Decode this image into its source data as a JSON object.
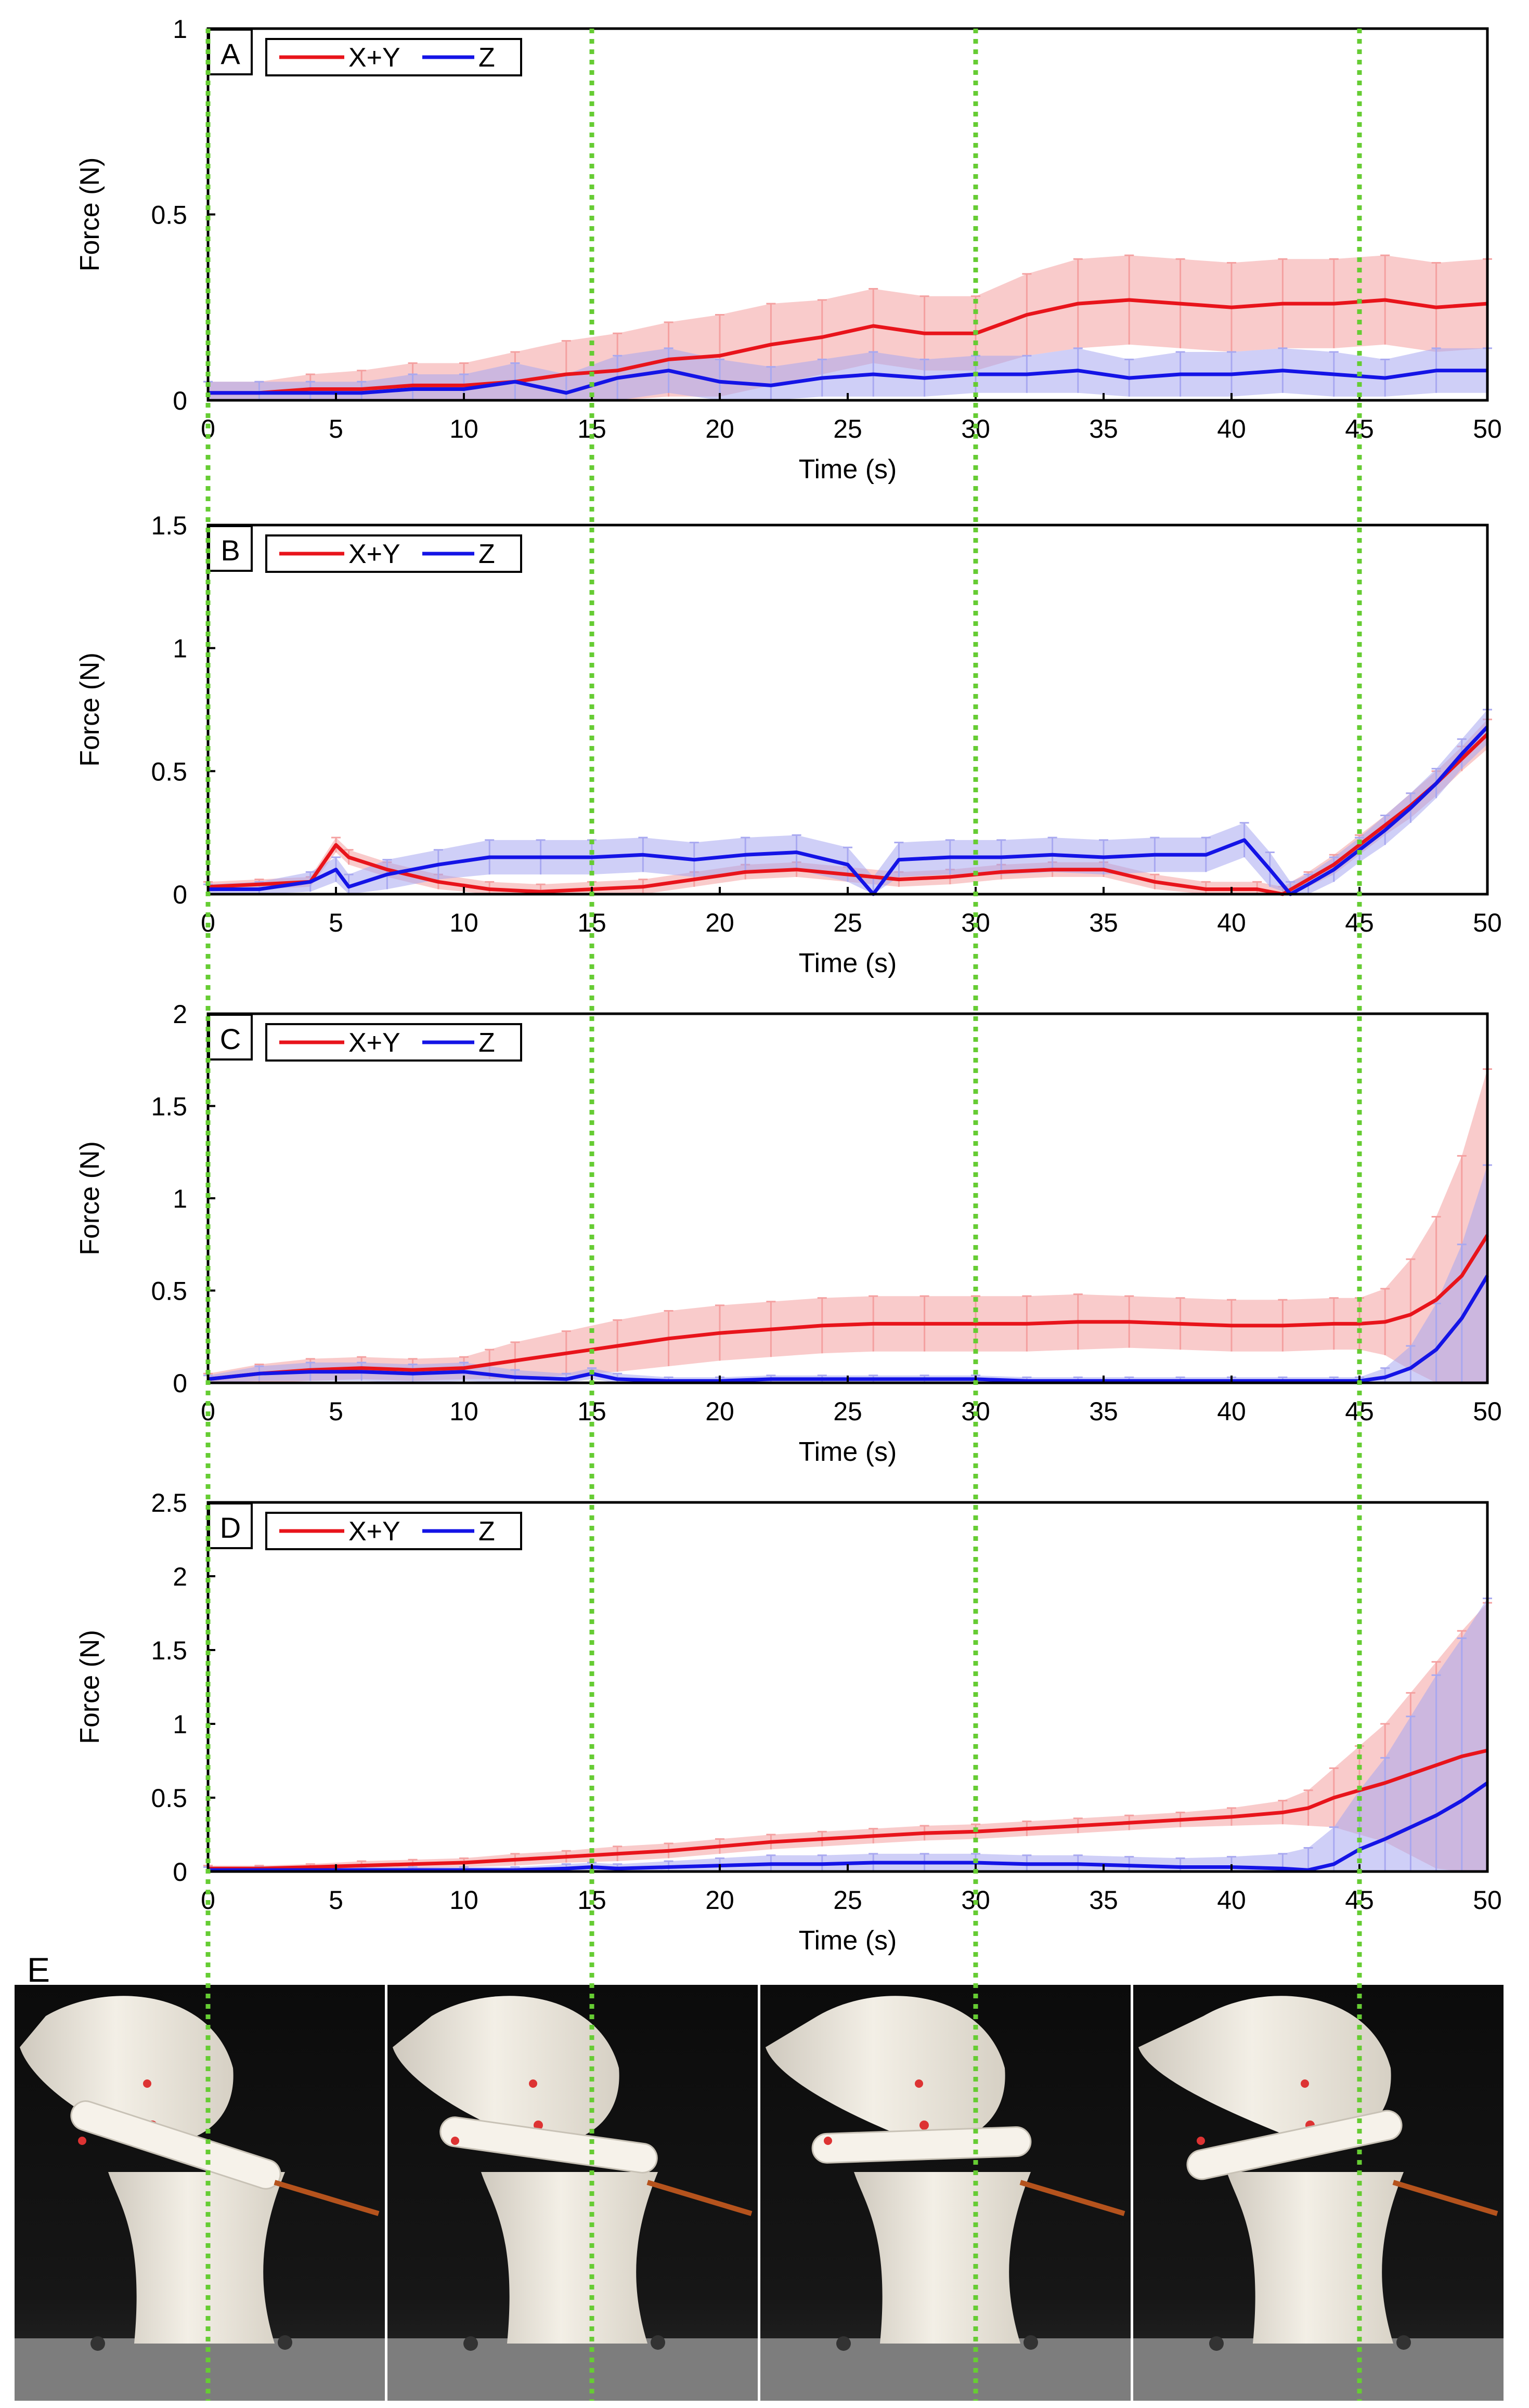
{
  "chart_data": [
    {
      "type": "line",
      "panel": "A",
      "title": "",
      "xlabel": "Time (s)",
      "ylabel": "Force (N)",
      "xlim": [
        0,
        50
      ],
      "ylim": [
        0,
        1
      ],
      "xticks": [
        0,
        5,
        10,
        15,
        20,
        25,
        30,
        35,
        40,
        45,
        50
      ],
      "yticks": [
        0,
        0.5,
        1
      ],
      "legend_position": "top-left",
      "series": [
        {
          "name": "X+Y",
          "color": "#e8141b",
          "band_color": "#f4a0a0",
          "x": [
            0,
            2,
            4,
            6,
            8,
            10,
            12,
            14,
            16,
            18,
            20,
            22,
            24,
            26,
            28,
            30,
            32,
            34,
            36,
            38,
            40,
            42,
            44,
            46,
            48,
            50
          ],
          "values": [
            0.02,
            0.02,
            0.03,
            0.03,
            0.04,
            0.04,
            0.05,
            0.07,
            0.08,
            0.11,
            0.12,
            0.15,
            0.17,
            0.2,
            0.18,
            0.18,
            0.23,
            0.26,
            0.27,
            0.26,
            0.25,
            0.26,
            0.26,
            0.27,
            0.25,
            0.26
          ],
          "errors": [
            0.03,
            0.03,
            0.04,
            0.05,
            0.06,
            0.06,
            0.08,
            0.09,
            0.1,
            0.1,
            0.11,
            0.11,
            0.1,
            0.1,
            0.1,
            0.1,
            0.11,
            0.12,
            0.12,
            0.12,
            0.12,
            0.12,
            0.12,
            0.12,
            0.12,
            0.12
          ]
        },
        {
          "name": "Z",
          "color": "#1414e6",
          "band_color": "#a8a8f0",
          "x": [
            0,
            2,
            4,
            6,
            8,
            10,
            12,
            14,
            16,
            18,
            20,
            22,
            24,
            26,
            28,
            30,
            32,
            34,
            36,
            38,
            40,
            42,
            44,
            46,
            48,
            50
          ],
          "values": [
            0.02,
            0.02,
            0.02,
            0.02,
            0.03,
            0.03,
            0.05,
            0.02,
            0.06,
            0.08,
            0.05,
            0.04,
            0.06,
            0.07,
            0.06,
            0.07,
            0.07,
            0.08,
            0.06,
            0.07,
            0.07,
            0.08,
            0.07,
            0.06,
            0.08,
            0.08
          ],
          "errors": [
            0.03,
            0.03,
            0.03,
            0.03,
            0.04,
            0.04,
            0.05,
            0.05,
            0.06,
            0.06,
            0.06,
            0.05,
            0.05,
            0.06,
            0.05,
            0.05,
            0.05,
            0.06,
            0.05,
            0.06,
            0.06,
            0.06,
            0.06,
            0.05,
            0.06,
            0.06
          ]
        }
      ]
    },
    {
      "type": "line",
      "panel": "B",
      "title": "",
      "xlabel": "Time (s)",
      "ylabel": "Force (N)",
      "xlim": [
        0,
        50
      ],
      "ylim": [
        0,
        1.5
      ],
      "xticks": [
        0,
        5,
        10,
        15,
        20,
        25,
        30,
        35,
        40,
        45,
        50
      ],
      "yticks": [
        0,
        0.5,
        1,
        1.5
      ],
      "legend_position": "top-left",
      "series": [
        {
          "name": "X+Y",
          "color": "#e8141b",
          "band_color": "#f4a0a0",
          "x": [
            0,
            2,
            4,
            5,
            5.5,
            7,
            9,
            11,
            13,
            15,
            17,
            19,
            21,
            23,
            25,
            27,
            29,
            31,
            33,
            35,
            37,
            39,
            41,
            42,
            43,
            44,
            45,
            46,
            47,
            48,
            49,
            50
          ],
          "values": [
            0.03,
            0.04,
            0.05,
            0.2,
            0.15,
            0.1,
            0.05,
            0.02,
            0.01,
            0.02,
            0.03,
            0.06,
            0.09,
            0.1,
            0.08,
            0.06,
            0.07,
            0.09,
            0.1,
            0.1,
            0.05,
            0.02,
            0.02,
            0.0,
            0.06,
            0.12,
            0.2,
            0.28,
            0.36,
            0.45,
            0.55,
            0.65
          ],
          "errors": [
            0.02,
            0.02,
            0.02,
            0.03,
            0.03,
            0.03,
            0.03,
            0.03,
            0.03,
            0.03,
            0.03,
            0.03,
            0.03,
            0.03,
            0.03,
            0.03,
            0.03,
            0.03,
            0.03,
            0.03,
            0.03,
            0.03,
            0.03,
            0.03,
            0.03,
            0.04,
            0.04,
            0.04,
            0.05,
            0.05,
            0.05,
            0.06
          ]
        },
        {
          "name": "Z",
          "color": "#1414e6",
          "band_color": "#a8a8f0",
          "x": [
            0,
            2,
            4,
            5,
            5.5,
            7,
            9,
            11,
            13,
            15,
            17,
            19,
            21,
            23,
            25,
            26,
            27,
            29,
            31,
            33,
            35,
            37,
            39,
            40.5,
            41.5,
            42.3,
            43,
            44,
            45,
            46,
            47,
            48,
            49,
            50
          ],
          "values": [
            0.02,
            0.02,
            0.05,
            0.1,
            0.03,
            0.08,
            0.12,
            0.15,
            0.15,
            0.15,
            0.16,
            0.14,
            0.16,
            0.17,
            0.12,
            0.0,
            0.14,
            0.15,
            0.15,
            0.16,
            0.15,
            0.16,
            0.16,
            0.22,
            0.1,
            0.0,
            0.04,
            0.1,
            0.18,
            0.26,
            0.35,
            0.45,
            0.57,
            0.68
          ],
          "errors": [
            0.02,
            0.03,
            0.04,
            0.05,
            0.05,
            0.06,
            0.06,
            0.07,
            0.07,
            0.07,
            0.07,
            0.07,
            0.07,
            0.07,
            0.07,
            0.07,
            0.07,
            0.07,
            0.07,
            0.07,
            0.07,
            0.07,
            0.07,
            0.07,
            0.07,
            0.05,
            0.04,
            0.05,
            0.05,
            0.06,
            0.06,
            0.06,
            0.06,
            0.07
          ]
        }
      ]
    },
    {
      "type": "line",
      "panel": "C",
      "title": "",
      "xlabel": "Time (s)",
      "ylabel": "Force (N)",
      "xlim": [
        0,
        50
      ],
      "ylim": [
        0,
        2
      ],
      "xticks": [
        0,
        5,
        10,
        15,
        20,
        25,
        30,
        35,
        40,
        45,
        50
      ],
      "yticks": [
        0,
        0.5,
        1,
        1.5,
        2
      ],
      "legend_position": "top-left",
      "series": [
        {
          "name": "X+Y",
          "color": "#e8141b",
          "band_color": "#f4a0a0",
          "x": [
            0,
            2,
            4,
            6,
            8,
            10,
            11,
            12,
            14,
            16,
            18,
            20,
            22,
            24,
            26,
            28,
            30,
            32,
            34,
            36,
            38,
            40,
            42,
            44,
            45,
            46,
            47,
            48,
            49,
            50
          ],
          "values": [
            0.02,
            0.05,
            0.07,
            0.08,
            0.07,
            0.08,
            0.1,
            0.12,
            0.16,
            0.2,
            0.24,
            0.27,
            0.29,
            0.31,
            0.32,
            0.32,
            0.32,
            0.32,
            0.33,
            0.33,
            0.32,
            0.31,
            0.31,
            0.32,
            0.32,
            0.33,
            0.37,
            0.45,
            0.58,
            0.8
          ],
          "errors": [
            0.03,
            0.05,
            0.06,
            0.06,
            0.06,
            0.06,
            0.08,
            0.1,
            0.12,
            0.14,
            0.15,
            0.15,
            0.15,
            0.15,
            0.15,
            0.15,
            0.15,
            0.15,
            0.15,
            0.14,
            0.14,
            0.14,
            0.14,
            0.14,
            0.14,
            0.18,
            0.3,
            0.45,
            0.65,
            0.9
          ]
        },
        {
          "name": "Z",
          "color": "#1414e6",
          "band_color": "#a8a8f0",
          "x": [
            0,
            2,
            4,
            6,
            8,
            10,
            12,
            14,
            15,
            16,
            18,
            20,
            22,
            24,
            26,
            28,
            30,
            32,
            34,
            36,
            38,
            40,
            42,
            44,
            45,
            46,
            47,
            48,
            49,
            50
          ],
          "values": [
            0.02,
            0.05,
            0.06,
            0.06,
            0.05,
            0.06,
            0.03,
            0.02,
            0.05,
            0.02,
            0.01,
            0.01,
            0.02,
            0.02,
            0.02,
            0.02,
            0.02,
            0.01,
            0.01,
            0.01,
            0.01,
            0.01,
            0.01,
            0.01,
            0.01,
            0.03,
            0.08,
            0.18,
            0.35,
            0.58
          ],
          "errors": [
            0.02,
            0.04,
            0.05,
            0.05,
            0.05,
            0.05,
            0.04,
            0.03,
            0.03,
            0.03,
            0.02,
            0.02,
            0.02,
            0.02,
            0.02,
            0.02,
            0.02,
            0.02,
            0.02,
            0.02,
            0.02,
            0.02,
            0.02,
            0.02,
            0.02,
            0.05,
            0.12,
            0.25,
            0.4,
            0.6
          ]
        }
      ]
    },
    {
      "type": "line",
      "panel": "D",
      "title": "",
      "xlabel": "Time (s)",
      "ylabel": "Force (N)",
      "xlim": [
        0,
        50
      ],
      "ylim": [
        0,
        2.5
      ],
      "xticks": [
        0,
        5,
        10,
        15,
        20,
        25,
        30,
        35,
        40,
        45,
        50
      ],
      "yticks": [
        0,
        0.5,
        1,
        1.5,
        2,
        2.5
      ],
      "legend_position": "top-left",
      "series": [
        {
          "name": "X+Y",
          "color": "#e8141b",
          "band_color": "#f4a0a0",
          "x": [
            0,
            2,
            4,
            6,
            8,
            10,
            12,
            14,
            16,
            18,
            20,
            22,
            24,
            26,
            28,
            30,
            32,
            34,
            36,
            38,
            40,
            42,
            43,
            44,
            45,
            46,
            47,
            48,
            49,
            50
          ],
          "values": [
            0.02,
            0.02,
            0.03,
            0.04,
            0.05,
            0.06,
            0.08,
            0.1,
            0.12,
            0.14,
            0.17,
            0.2,
            0.22,
            0.24,
            0.26,
            0.27,
            0.29,
            0.31,
            0.33,
            0.35,
            0.37,
            0.4,
            0.43,
            0.5,
            0.55,
            0.6,
            0.66,
            0.72,
            0.78,
            0.82
          ],
          "errors": [
            0.02,
            0.02,
            0.02,
            0.03,
            0.03,
            0.03,
            0.04,
            0.04,
            0.05,
            0.05,
            0.05,
            0.05,
            0.05,
            0.05,
            0.05,
            0.05,
            0.05,
            0.05,
            0.05,
            0.05,
            0.06,
            0.08,
            0.12,
            0.2,
            0.3,
            0.4,
            0.55,
            0.7,
            0.85,
            1.0
          ]
        },
        {
          "name": "Z",
          "color": "#1414e6",
          "band_color": "#a8a8f0",
          "x": [
            0,
            2,
            4,
            6,
            8,
            10,
            12,
            14,
            15,
            16,
            18,
            20,
            22,
            24,
            26,
            28,
            30,
            32,
            34,
            36,
            38,
            40,
            42,
            43,
            44,
            45,
            46,
            47,
            48,
            49,
            50
          ],
          "values": [
            0.01,
            0.01,
            0.01,
            0.01,
            0.01,
            0.01,
            0.01,
            0.02,
            0.03,
            0.02,
            0.03,
            0.04,
            0.05,
            0.05,
            0.06,
            0.06,
            0.06,
            0.05,
            0.05,
            0.04,
            0.03,
            0.03,
            0.02,
            0.01,
            0.05,
            0.15,
            0.22,
            0.3,
            0.38,
            0.48,
            0.6
          ],
          "errors": [
            0.02,
            0.02,
            0.02,
            0.02,
            0.02,
            0.02,
            0.02,
            0.03,
            0.03,
            0.03,
            0.04,
            0.05,
            0.06,
            0.06,
            0.06,
            0.06,
            0.06,
            0.06,
            0.06,
            0.06,
            0.06,
            0.07,
            0.1,
            0.15,
            0.25,
            0.4,
            0.55,
            0.75,
            0.95,
            1.1,
            1.25
          ]
        }
      ]
    }
  ],
  "panel_labels": {
    "a": "A",
    "b": "B",
    "c": "C",
    "d": "D",
    "e": "E"
  },
  "marker_times": [
    0,
    15,
    30,
    45
  ],
  "marker_color": "#66cc33",
  "photos": [
    {
      "label": "photo-frame-1"
    },
    {
      "label": "photo-frame-2"
    },
    {
      "label": "photo-frame-3"
    },
    {
      "label": "photo-frame-4"
    }
  ]
}
